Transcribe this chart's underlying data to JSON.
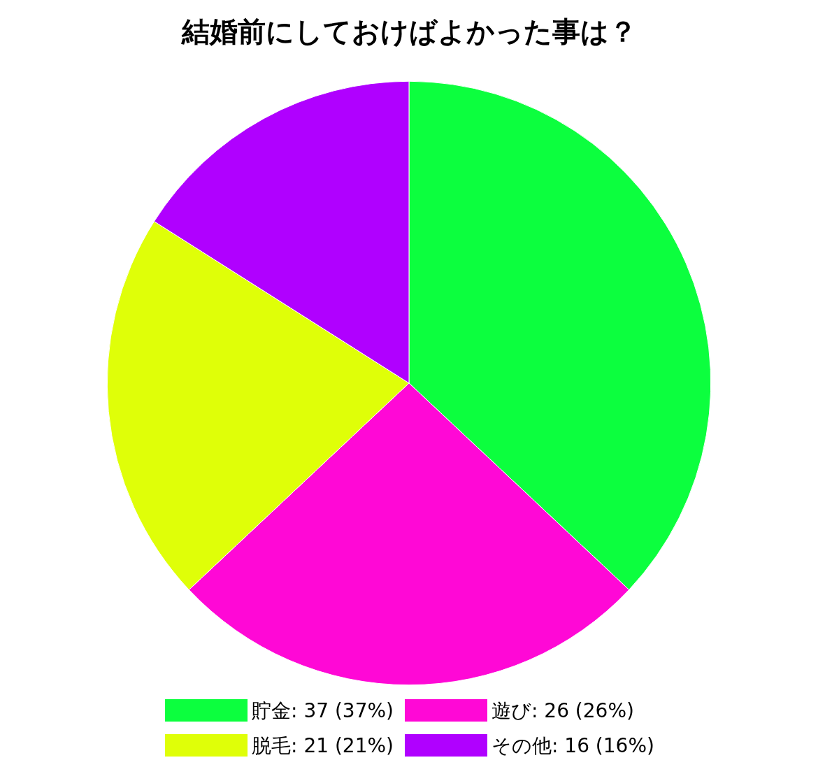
{
  "chart_data": {
    "type": "pie",
    "title": "結婚前にしておけばよかった事は？",
    "categories": [
      "貯金",
      "遊び",
      "脱毛",
      "その他"
    ],
    "values": [
      37,
      26,
      21,
      16
    ],
    "colors": [
      "#0cff3e",
      "#ff08d6",
      "#dfff08",
      "#b000ff"
    ],
    "value_labels": [
      "37 (37%)",
      "26 (26%)",
      "21 (21%)",
      "16 (16%)"
    ],
    "legend": "bottom"
  }
}
